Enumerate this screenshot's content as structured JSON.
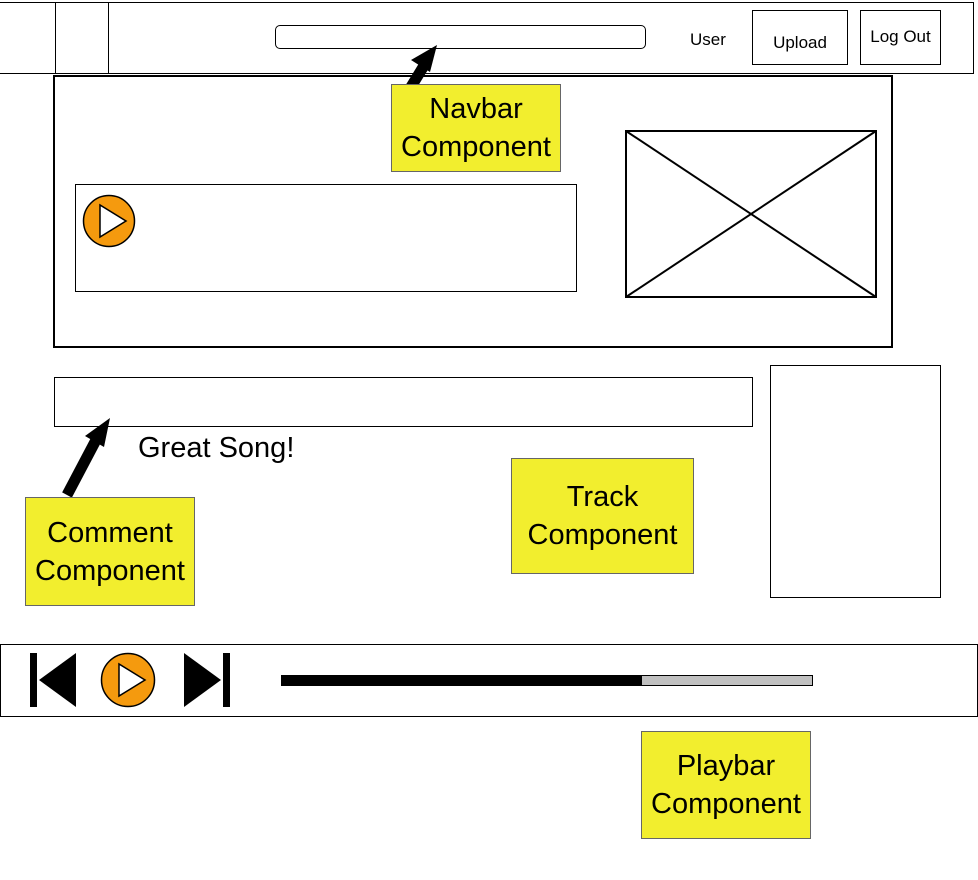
{
  "navbar": {
    "user_label": "User",
    "upload_label": "Upload",
    "logout_label": "Log Out"
  },
  "comment": {
    "text": "Great Song!"
  },
  "playbar": {
    "progress": 0.68
  },
  "annotations": {
    "navbar_note": [
      "Navbar",
      "Component"
    ],
    "comment_note": [
      "Comment",
      "Component"
    ],
    "track_note": [
      "Track",
      "Component"
    ],
    "playbar_note": [
      "Playbar",
      "Component"
    ]
  },
  "colors": {
    "note_yellow": "#f2ee2e",
    "play_orange": "#f59a0e",
    "progress_remaining": "#c0c0c0",
    "icons": [
      "play-icon",
      "skip-back-icon",
      "skip-forward-icon",
      "arrow-icon",
      "image-placeholder-icon"
    ]
  }
}
